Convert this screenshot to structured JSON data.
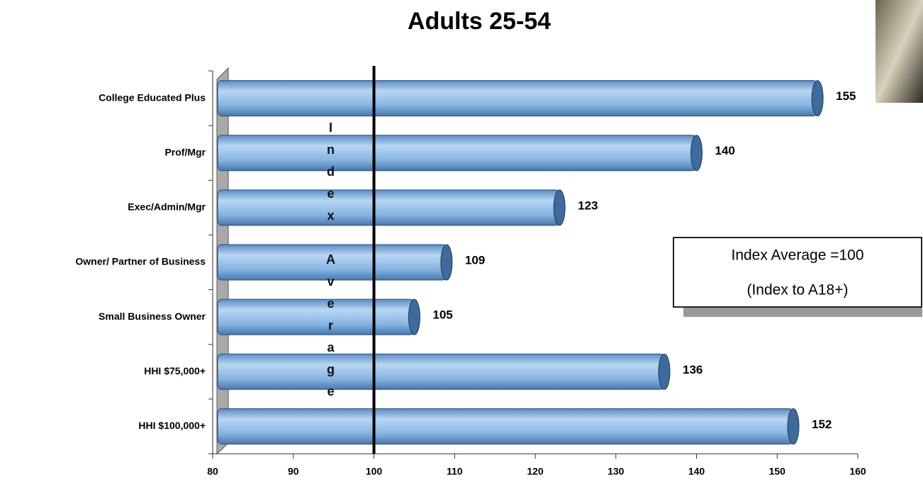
{
  "chart_data": {
    "type": "bar",
    "orientation": "horizontal",
    "title": "Adults 25-54",
    "categories": [
      "College Educated Plus",
      "Prof/Mgr",
      "Exec/Admin/Mgr",
      "Owner/ Partner of Business",
      "Small Business Owner",
      "HHI $75,000+",
      "HHI $100,000+"
    ],
    "values": [
      155,
      140,
      123,
      109,
      105,
      136,
      152
    ],
    "color": "#7fb0e0",
    "xlim": [
      80,
      160
    ],
    "xticks": [
      80,
      90,
      100,
      110,
      120,
      130,
      140,
      150,
      160
    ],
    "reference_line": {
      "value": 100,
      "label": "Index Average"
    },
    "annotation": [
      "Index Average =100",
      "(Index to A18+)"
    ]
  }
}
